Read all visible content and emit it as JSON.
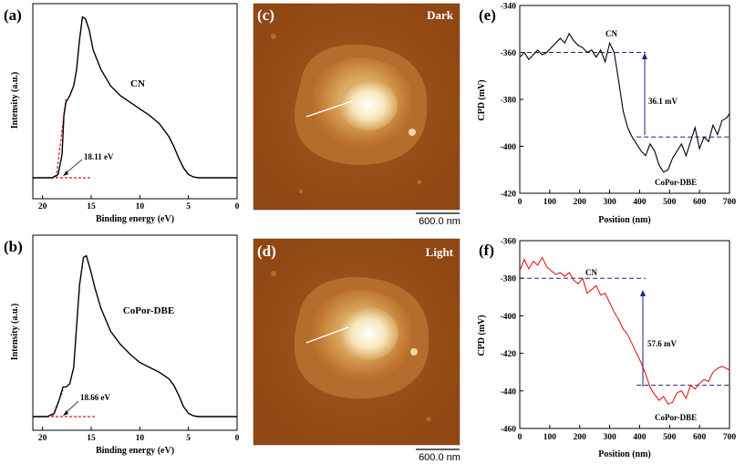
{
  "chart_data": [
    {
      "panel": "(a)",
      "type": "line",
      "xlabel": "Binding energy (eV)",
      "ylabel": "Intensity (a.u.)",
      "xlim": [
        21,
        0
      ],
      "x_ticks": [
        20,
        15,
        10,
        5,
        0
      ],
      "series_label": "CN",
      "x": [
        21,
        19,
        18.4,
        18.0,
        17.8,
        17.6,
        17.2,
        16.8,
        16.5,
        16.2,
        15.9,
        15.6,
        15.2,
        14.8,
        14.0,
        13.0,
        12.0,
        11.0,
        10.0,
        9.0,
        8.0,
        7.0,
        6.5,
        6.0,
        5.5,
        5.0,
        4.5,
        4.0,
        3.0,
        2.0,
        1.0,
        0
      ],
      "y": [
        0.0,
        0.0,
        0.02,
        0.14,
        0.38,
        0.46,
        0.5,
        0.56,
        0.66,
        0.84,
        0.98,
        0.97,
        0.9,
        0.78,
        0.66,
        0.56,
        0.5,
        0.46,
        0.42,
        0.38,
        0.33,
        0.25,
        0.19,
        0.12,
        0.06,
        0.02,
        0.005,
        0.0,
        0.0,
        0.0,
        0.0,
        0.0
      ],
      "cutoff_line": {
        "x": [
          18.6,
          17.6
        ],
        "y": [
          0.0,
          0.48
        ]
      },
      "baseline_line": {
        "x": [
          21,
          15
        ],
        "y": [
          0.0,
          0.0
        ]
      },
      "annotation": "18.11 eV"
    },
    {
      "panel": "(b)",
      "type": "line",
      "xlabel": "Binding energy (eV)",
      "ylabel": "Intensity (a.u.)",
      "xlim": [
        21,
        0
      ],
      "x_ticks": [
        20,
        15,
        10,
        5,
        0
      ],
      "series_label": "CoPor-DBE",
      "x": [
        21,
        19.5,
        18.8,
        18.3,
        17.9,
        17.6,
        17.2,
        16.8,
        16.5,
        16.2,
        15.8,
        15.5,
        15.1,
        14.6,
        14.0,
        13.0,
        12.0,
        11.0,
        10.0,
        9.0,
        8.0,
        7.0,
        6.5,
        6.0,
        5.5,
        5.0,
        4.5,
        4.0,
        3.0,
        2.0,
        1.0,
        0
      ],
      "y": [
        0.0,
        0.0,
        0.02,
        0.1,
        0.18,
        0.18,
        0.2,
        0.3,
        0.55,
        0.8,
        0.97,
        0.98,
        0.9,
        0.78,
        0.66,
        0.52,
        0.44,
        0.38,
        0.33,
        0.3,
        0.27,
        0.23,
        0.19,
        0.13,
        0.06,
        0.02,
        0.005,
        0.0,
        0.0,
        0.0,
        0.0,
        0.0
      ],
      "cutoff_line": {
        "x": [
          19.0,
          17.9
        ],
        "y": [
          0.0,
          0.16
        ]
      },
      "baseline_line": {
        "x": [
          21,
          14.5
        ],
        "y": [
          0.0,
          0.0
        ]
      },
      "annotation": "18.66 eV"
    },
    {
      "panel": "(e)",
      "type": "line",
      "xlabel": "Position (nm)",
      "ylabel": "CPD (mV)",
      "xlim": [
        0,
        700
      ],
      "ylim": [
        -420,
        -340
      ],
      "x_ticks": [
        0,
        100,
        200,
        300,
        400,
        500,
        600,
        700
      ],
      "y_ticks": [
        -340,
        -360,
        -380,
        -400,
        -420
      ],
      "color": "#000000",
      "x": [
        0,
        15,
        30,
        45,
        60,
        75,
        90,
        105,
        120,
        135,
        150,
        165,
        180,
        195,
        210,
        225,
        240,
        255,
        270,
        285,
        300,
        315,
        330,
        345,
        360,
        375,
        390,
        405,
        420,
        435,
        450,
        465,
        480,
        495,
        510,
        525,
        540,
        555,
        570,
        585,
        600,
        615,
        630,
        645,
        660,
        675,
        690,
        700
      ],
      "y": [
        -362,
        -360,
        -363,
        -361,
        -359,
        -361,
        -360,
        -358,
        -356,
        -354,
        -356,
        -352,
        -355,
        -357,
        -358,
        -360,
        -359,
        -362,
        -359,
        -364,
        -356,
        -360,
        -372,
        -385,
        -392,
        -396,
        -399,
        -402,
        -404,
        -399,
        -402,
        -408,
        -411,
        -410,
        -405,
        -402,
        -399,
        -404,
        -398,
        -392,
        -401,
        -396,
        -398,
        -391,
        -395,
        -389,
        -388,
        -386
      ],
      "ref_lines": [
        -360,
        -396
      ],
      "annotations": [
        "CN",
        "36.1 mV",
        "CoPor-DBE"
      ]
    },
    {
      "panel": "(f)",
      "type": "line",
      "xlabel": "Position (nm)",
      "ylabel": "CPD (mV)",
      "xlim": [
        0,
        700
      ],
      "ylim": [
        -460,
        -360
      ],
      "x_ticks": [
        0,
        100,
        200,
        300,
        400,
        500,
        600,
        700
      ],
      "y_ticks": [
        -360,
        -380,
        -400,
        -420,
        -440,
        -460
      ],
      "color": "#e8171b",
      "x": [
        0,
        15,
        30,
        45,
        60,
        75,
        90,
        105,
        120,
        135,
        150,
        165,
        180,
        195,
        210,
        225,
        240,
        255,
        270,
        285,
        300,
        315,
        330,
        345,
        360,
        375,
        390,
        405,
        420,
        435,
        450,
        465,
        480,
        495,
        510,
        525,
        540,
        555,
        570,
        585,
        600,
        615,
        630,
        645,
        660,
        675,
        690,
        700
      ],
      "y": [
        -376,
        -370,
        -375,
        -371,
        -373,
        -369,
        -374,
        -376,
        -378,
        -377,
        -379,
        -377,
        -381,
        -383,
        -380,
        -388,
        -386,
        -384,
        -389,
        -388,
        -393,
        -398,
        -402,
        -407,
        -410,
        -415,
        -420,
        -425,
        -431,
        -438,
        -442,
        -445,
        -443,
        -447,
        -446,
        -441,
        -440,
        -444,
        -437,
        -439,
        -436,
        -434,
        -435,
        -430,
        -428,
        -427,
        -428,
        -429
      ],
      "ref_lines": [
        -380,
        -437
      ],
      "annotations": [
        "CN",
        "57.6 mV",
        "CoPor-DBE"
      ]
    }
  ],
  "images": {
    "c": {
      "panel": "(c)",
      "label": "Dark",
      "scale_bar": "600.0 nm"
    },
    "d": {
      "panel": "(d)",
      "label": "Light",
      "scale_bar": "600.0 nm"
    }
  }
}
